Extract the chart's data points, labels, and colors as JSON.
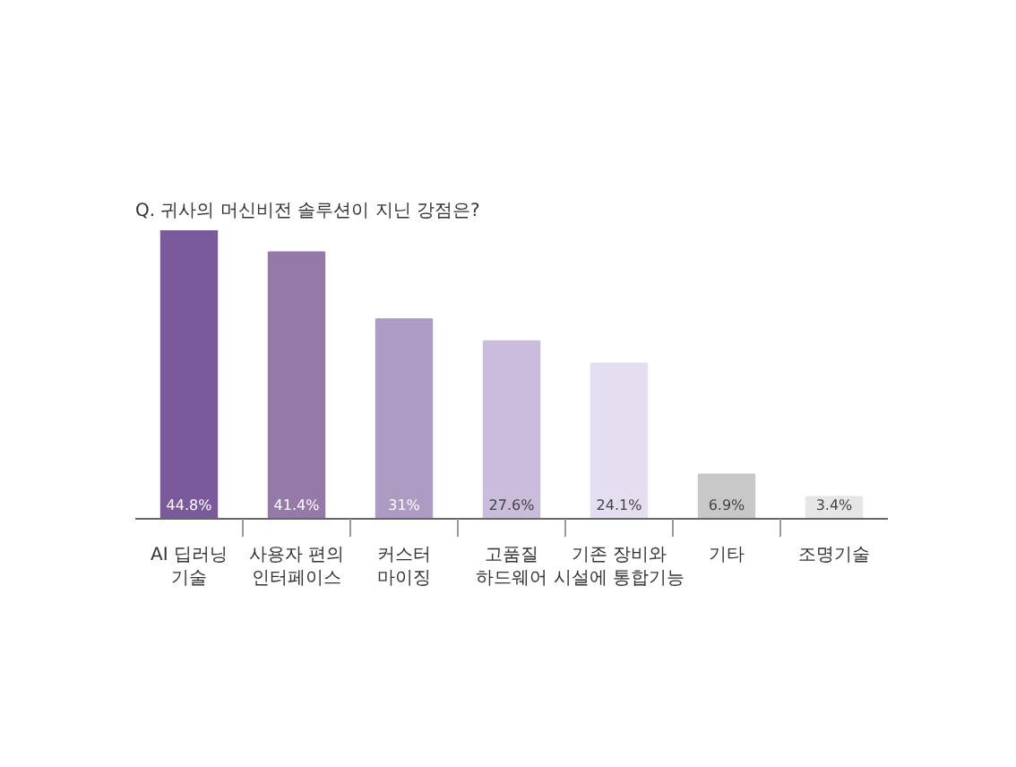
{
  "chart_data": {
    "type": "bar",
    "title": "Q. 귀사의 머신비전 솔루션이 지닌 강점은?",
    "categories": [
      "AI 딥러닝\n기술",
      "사용자 편의\n인터페이스",
      "커스터\n마이징",
      "고품질\n하드웨어",
      "기존 장비와\n시설에 통합기능",
      "기타",
      "조명기술"
    ],
    "values": [
      44.8,
      41.4,
      31,
      27.6,
      24.1,
      6.9,
      3.4
    ],
    "value_labels": [
      "44.8%",
      "41.4%",
      "31%",
      "27.6%",
      "24.1%",
      "6.9%",
      "3.4%"
    ],
    "colors": [
      "#7b5a9b",
      "#9479a9",
      "#ad9bc3",
      "#c9bddb",
      "#e4def0",
      "#c8c8c8",
      "#e6e6e6"
    ],
    "grid": false
  }
}
